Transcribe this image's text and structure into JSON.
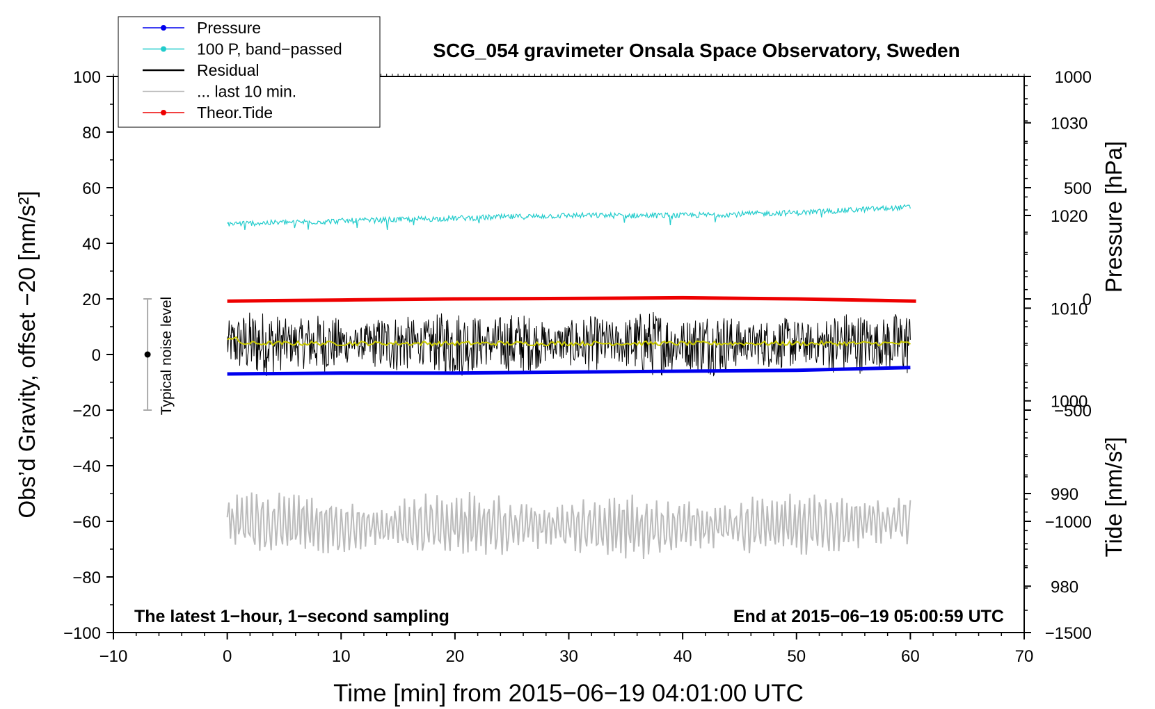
{
  "chart_data": {
    "type": "line",
    "title": "SCG_054 gravimeter Onsala Space Observatory, Sweden",
    "xlabel": "Time [min] from 2015−06−19 04:01:00 UTC",
    "ylabel_left": "Obs’d Gravity, offset −20 [nm/s²]",
    "ylabel_right_top": "Pressure [hPa]",
    "ylabel_right_bottom": "Tide [nm/s²]",
    "xlim": [
      -10,
      70
    ],
    "ylim_left": [
      -100,
      100
    ],
    "ylim_pressure": [
      975,
      1035
    ],
    "ylim_tide": [
      -1500,
      1000
    ],
    "xticks": [
      {
        "v": -10,
        "label": "−10"
      },
      {
        "v": 0,
        "label": "0"
      },
      {
        "v": 10,
        "label": "10"
      },
      {
        "v": 20,
        "label": "20"
      },
      {
        "v": 30,
        "label": "30"
      },
      {
        "v": 40,
        "label": "40"
      },
      {
        "v": 50,
        "label": "50"
      },
      {
        "v": 60,
        "label": "60"
      },
      {
        "v": 70,
        "label": "70"
      }
    ],
    "yticks_left": [
      {
        "v": 100,
        "label": "100"
      },
      {
        "v": 80,
        "label": "80"
      },
      {
        "v": 60,
        "label": "60"
      },
      {
        "v": 40,
        "label": "40"
      },
      {
        "v": 20,
        "label": "20"
      },
      {
        "v": 0,
        "label": "0"
      },
      {
        "v": -20,
        "label": "−20"
      },
      {
        "v": -40,
        "label": "−40"
      },
      {
        "v": -60,
        "label": "−60"
      },
      {
        "v": -80,
        "label": "−80"
      },
      {
        "v": -100,
        "label": "−100"
      }
    ],
    "yticks_pressure": [
      {
        "v": 1030,
        "label": "1030"
      },
      {
        "v": 1020,
        "label": "1020"
      },
      {
        "v": 1010,
        "label": "1010"
      },
      {
        "v": 1000,
        "label": "1000"
      },
      {
        "v": 990,
        "label": "990"
      },
      {
        "v": 980,
        "label": "980"
      }
    ],
    "yticks_tide": [
      {
        "v": 1000,
        "label": "1000"
      },
      {
        "v": 500,
        "label": "500"
      },
      {
        "v": 0,
        "label": "0"
      },
      {
        "v": -500,
        "label": "−500"
      },
      {
        "v": -1000,
        "label": "−1000"
      },
      {
        "v": -1500,
        "label": "−1500"
      }
    ],
    "legend": [
      {
        "label": "Pressure",
        "color": "#0000ee",
        "marker": true
      },
      {
        "label": "100 P, band−passed",
        "color": "#22cccc",
        "marker": true
      },
      {
        "label": "Residual",
        "color": "#000000",
        "marker": false
      },
      {
        "label": "... last 10 min.",
        "color": "#bbbbbb",
        "marker": false
      },
      {
        "label": "Theor.Tide",
        "color": "#ee0000",
        "marker": true
      }
    ],
    "legend_position": "top-left",
    "series": [
      {
        "name": "Pressure",
        "axis": "pressure",
        "color": "#0000ee",
        "x": [
          0,
          10,
          20,
          30,
          40,
          50,
          60
        ],
        "y": [
          1002.9,
          1003.0,
          1003.0,
          1003.1,
          1003.2,
          1003.3,
          1003.6
        ]
      },
      {
        "name": "100 P, band−passed",
        "axis": "left",
        "color": "#22cccc",
        "x": [
          0,
          10,
          20,
          30,
          40,
          50,
          60
        ],
        "y": [
          47,
          48,
          49,
          50,
          50,
          51,
          53
        ]
      },
      {
        "name": "Residual",
        "axis": "left",
        "color": "#000000",
        "x": [
          0,
          10,
          20,
          30,
          40,
          50,
          60
        ],
        "y": [
          4,
          4,
          4,
          4,
          4,
          4,
          4
        ],
        "amplitude": 9
      },
      {
        "name": "... last 10 min.",
        "axis": "left",
        "color": "#bbbbbb",
        "x": [
          0,
          10,
          20,
          30,
          40,
          50,
          60
        ],
        "y": [
          -60,
          -62,
          -61,
          -62,
          -62,
          -61,
          -60
        ],
        "amplitude": 10
      },
      {
        "name": "Theor.Tide",
        "axis": "tide",
        "color": "#ee0000",
        "x": [
          0,
          10,
          20,
          30,
          40,
          50,
          60.5
        ],
        "y": [
          -10,
          -5,
          0,
          2,
          5,
          0,
          -10
        ]
      }
    ],
    "noise_bar": {
      "label": "Typical noise level",
      "x": -7,
      "center": 0,
      "low": -20,
      "high": 20
    },
    "annotations": [
      {
        "text": "The latest 1−hour, 1−second sampling",
        "position": "bottom-left"
      },
      {
        "text": "End at 2015−06−19 05:00:59 UTC",
        "position": "bottom-right"
      }
    ],
    "grid": false
  }
}
